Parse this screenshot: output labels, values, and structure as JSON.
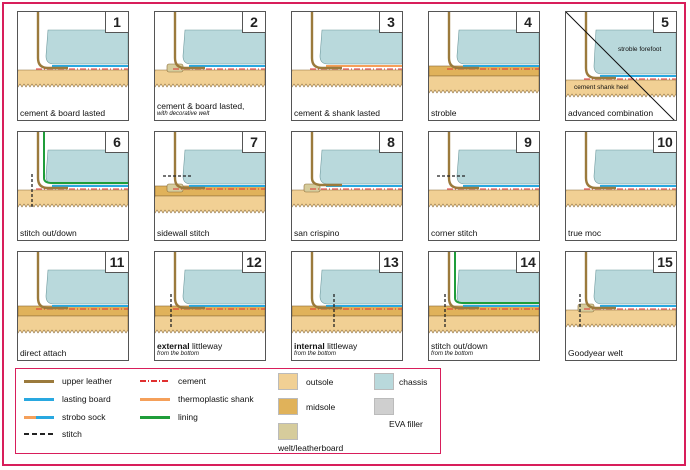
{
  "panels": [
    {
      "num": "1",
      "caption": "cement & board lasted"
    },
    {
      "num": "2",
      "caption": "cement & board lasted,",
      "sub": "with decorative welt"
    },
    {
      "num": "3",
      "caption": "cement & shank lasted"
    },
    {
      "num": "4",
      "caption": "stroble"
    },
    {
      "num": "5",
      "caption": "advanced combination",
      "label_a": "stroble forefoot",
      "label_b": "cement shank heel"
    },
    {
      "num": "6",
      "caption": "stitch out/down"
    },
    {
      "num": "7",
      "caption": "sidewall stitch"
    },
    {
      "num": "8",
      "caption": "san crispino"
    },
    {
      "num": "9",
      "caption": "corner stitch"
    },
    {
      "num": "10",
      "caption": "true moc"
    },
    {
      "num": "11",
      "caption": "direct attach"
    },
    {
      "num": "12",
      "caption_bold": "external",
      "caption": " littleway",
      "sub": "from the bottom"
    },
    {
      "num": "13",
      "caption_bold": "internal",
      "caption": " littleway",
      "sub": "from the bottom"
    },
    {
      "num": "14",
      "caption": "stitch out/down",
      "sub": "from the bottom"
    },
    {
      "num": "15",
      "caption": "Goodyear welt"
    }
  ],
  "legend": {
    "lines": [
      {
        "label": "upper leather",
        "color": "#9b7a3c"
      },
      {
        "label": "lasting board",
        "color": "#29a8e0"
      },
      {
        "label": "strobo sock",
        "color": "#29a8e0"
      },
      {
        "label": "stitch",
        "color": "#222222"
      },
      {
        "label": "cement",
        "color": "#e03030"
      },
      {
        "label": "thermoplastic shank",
        "color": "#f5a05a"
      },
      {
        "label": "lining",
        "color": "#1f9d3a"
      }
    ],
    "swatches": [
      {
        "label": "outsole",
        "color": "#f1d094"
      },
      {
        "label": "midsole",
        "color": "#e0b25a"
      },
      {
        "label": "welt/leatherboard",
        "color": "#d6cc9c"
      },
      {
        "label": "chassis",
        "color": "#b9d9dc"
      },
      {
        "label": "EVA filler",
        "color": "#cfcfcf"
      }
    ]
  }
}
